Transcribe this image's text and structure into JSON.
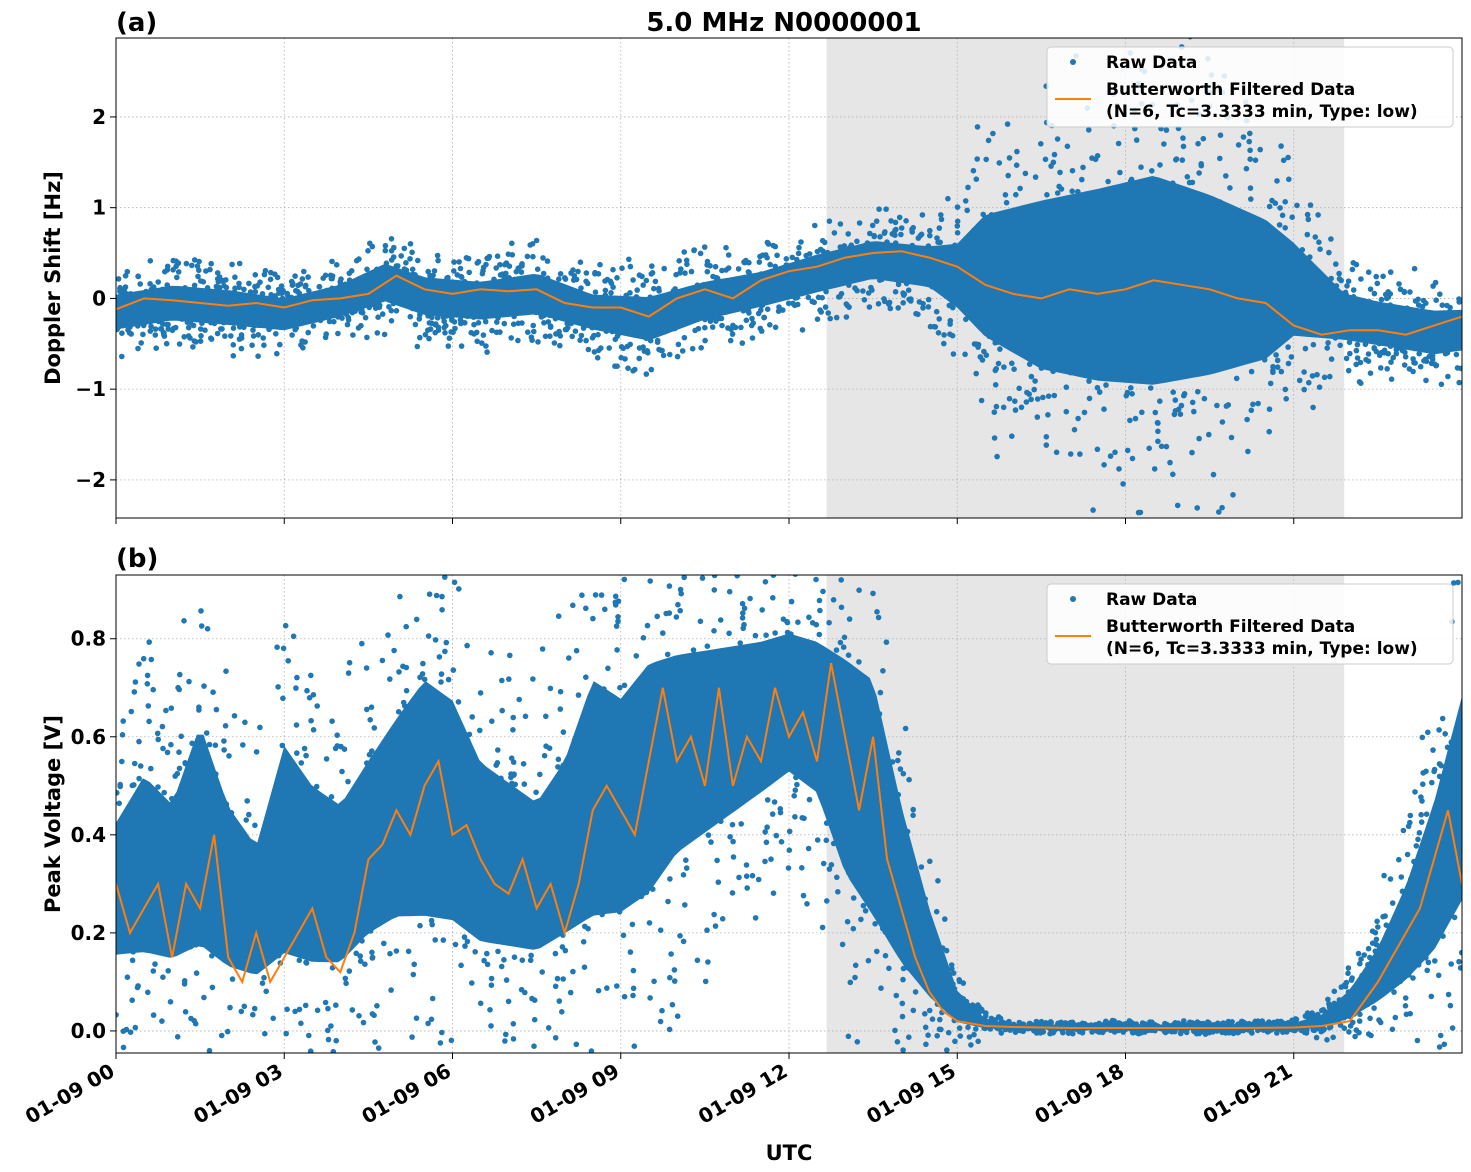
{
  "figure": {
    "title": "5.0 MHz N0000001",
    "xlabel": "UTC",
    "x_tick_labels": [
      "01-09 00",
      "01-09 03",
      "01-09 06",
      "01-09 09",
      "01-09 12",
      "01-09 15",
      "01-09 18",
      "01-09 21"
    ]
  },
  "legend": {
    "raw_label": "Raw Data",
    "filtered_label_line1": "Butterworth Filtered Data",
    "filtered_label_line2": "(N=6, Tc=3.3333 min, Type: low)"
  },
  "colors": {
    "raw": "#1f77b4",
    "filtered": "#ff7f0e",
    "shade": "#e6e6e6",
    "grid": "#b0b0b0"
  },
  "chart_data": [
    {
      "type": "scatter",
      "panel_label": "(a)",
      "ylabel": "Doppler Shift [Hz]",
      "xlim": [
        0,
        24
      ],
      "ylim": [
        -2.42,
        2.87
      ],
      "y_ticks": [
        -2,
        -1,
        0,
        1,
        2
      ],
      "y_tick_labels": [
        "−2",
        "−1",
        "0",
        "1",
        "2"
      ],
      "grid": true,
      "legend_position": "top-right",
      "shaded_region_hours": [
        12.67,
        21.9
      ],
      "series": [
        {
          "name": "Raw Data",
          "kind": "points",
          "envelope_x": [
            0,
            1,
            2,
            3,
            4,
            4.8,
            5.5,
            6.5,
            7.5,
            8.5,
            9.5,
            10.5,
            11.5,
            12.5,
            13.5,
            14.5,
            15.0,
            15.5,
            16.5,
            17.5,
            18.5,
            19.5,
            20.5,
            21.0,
            21.9,
            22.5,
            23.5,
            24
          ],
          "envelope_upper": [
            0.15,
            0.25,
            0.2,
            0.1,
            0.25,
            0.5,
            0.35,
            0.3,
            0.4,
            0.15,
            0.15,
            0.3,
            0.4,
            0.6,
            0.75,
            0.7,
            0.8,
            1.3,
            1.6,
            1.8,
            2.0,
            1.7,
            1.3,
            0.9,
            0.2,
            0.1,
            0.0,
            0.0
          ],
          "envelope_lower": [
            -0.45,
            -0.35,
            -0.4,
            -0.45,
            -0.3,
            -0.15,
            -0.3,
            -0.35,
            -0.3,
            -0.45,
            -0.6,
            -0.35,
            -0.2,
            -0.05,
            0.1,
            0.0,
            -0.3,
            -0.8,
            -1.3,
            -1.5,
            -1.6,
            -1.4,
            -1.1,
            -0.7,
            -0.6,
            -0.65,
            -0.75,
            -0.7
          ]
        },
        {
          "name": "Butterworth Filtered Data (N=6, Tc=3.3333 min, Type: low)",
          "kind": "line",
          "x": [
            0,
            0.5,
            1,
            1.5,
            2,
            2.5,
            3,
            3.5,
            4,
            4.5,
            5,
            5.5,
            6,
            6.5,
            7,
            7.5,
            8,
            8.5,
            9,
            9.5,
            10,
            10.5,
            11,
            11.5,
            12,
            12.5,
            13,
            13.5,
            14,
            14.5,
            15,
            15.5,
            16,
            16.5,
            17,
            17.5,
            18,
            18.5,
            19,
            19.5,
            20,
            20.5,
            21,
            21.5,
            22,
            22.5,
            23,
            23.5,
            24
          ],
          "y": [
            -0.12,
            0.0,
            -0.02,
            -0.05,
            -0.08,
            -0.05,
            -0.1,
            -0.02,
            0.0,
            0.05,
            0.25,
            0.1,
            0.05,
            0.1,
            0.08,
            0.1,
            -0.05,
            -0.1,
            -0.1,
            -0.2,
            0.0,
            0.1,
            0.0,
            0.2,
            0.3,
            0.35,
            0.45,
            0.5,
            0.52,
            0.45,
            0.35,
            0.15,
            0.05,
            0.0,
            0.1,
            0.05,
            0.1,
            0.2,
            0.15,
            0.1,
            0.0,
            -0.05,
            -0.3,
            -0.4,
            -0.35,
            -0.35,
            -0.4,
            -0.3,
            -0.2
          ]
        }
      ]
    },
    {
      "type": "scatter",
      "panel_label": "(b)",
      "ylabel": "Peak Voltage [V]",
      "xlim": [
        0,
        24
      ],
      "ylim": [
        -0.045,
        0.93
      ],
      "y_ticks": [
        0.0,
        0.2,
        0.4,
        0.6,
        0.8
      ],
      "y_tick_labels": [
        "0.0",
        "0.2",
        "0.4",
        "0.6",
        "0.8"
      ],
      "grid": true,
      "legend_position": "top-right",
      "shaded_region_hours": [
        12.67,
        21.9
      ],
      "series": [
        {
          "name": "Raw Data",
          "kind": "points",
          "envelope_x": [
            0,
            0.5,
            1,
            1.5,
            2,
            2.5,
            3,
            3.5,
            4,
            4.5,
            5,
            5.5,
            6,
            6.5,
            7,
            7.5,
            8,
            8.5,
            9,
            9.5,
            10,
            10.5,
            11,
            11.5,
            12,
            12.5,
            13,
            13.5,
            14,
            14.5,
            15,
            15.5,
            16,
            18,
            20,
            21,
            21.5,
            22,
            22.5,
            23,
            23.5,
            24
          ],
          "envelope_upper": [
            0.5,
            0.62,
            0.55,
            0.75,
            0.55,
            0.45,
            0.7,
            0.6,
            0.55,
            0.65,
            0.75,
            0.85,
            0.8,
            0.65,
            0.6,
            0.55,
            0.65,
            0.85,
            0.8,
            0.88,
            0.88,
            0.88,
            0.88,
            0.88,
            0.89,
            0.88,
            0.88,
            0.85,
            0.55,
            0.3,
            0.1,
            0.03,
            0.015,
            0.015,
            0.015,
            0.02,
            0.04,
            0.1,
            0.2,
            0.35,
            0.55,
            0.8
          ],
          "envelope_lower": [
            0.08,
            0.06,
            0.06,
            0.05,
            0.04,
            0.04,
            0.04,
            0.04,
            0.05,
            0.1,
            0.12,
            0.1,
            0.1,
            0.08,
            0.08,
            0.08,
            0.1,
            0.1,
            0.12,
            0.15,
            0.25,
            0.3,
            0.35,
            0.4,
            0.45,
            0.4,
            0.2,
            0.1,
            0.05,
            0.02,
            0.0,
            0.0,
            0.0,
            0.0,
            0.0,
            0.0,
            0.0,
            0.01,
            0.03,
            0.05,
            0.08,
            0.15
          ]
        },
        {
          "name": "Butterworth Filtered Data (N=6, Tc=3.3333 min, Type: low)",
          "kind": "line",
          "x": [
            0,
            0.25,
            0.5,
            0.75,
            1,
            1.25,
            1.5,
            1.75,
            2,
            2.25,
            2.5,
            2.75,
            3,
            3.25,
            3.5,
            3.75,
            4,
            4.25,
            4.5,
            4.75,
            5,
            5.25,
            5.5,
            5.75,
            6,
            6.25,
            6.5,
            6.75,
            7,
            7.25,
            7.5,
            7.75,
            8,
            8.25,
            8.5,
            8.75,
            9,
            9.25,
            9.5,
            9.75,
            10,
            10.25,
            10.5,
            10.75,
            11,
            11.25,
            11.5,
            11.75,
            12,
            12.25,
            12.5,
            12.75,
            13,
            13.25,
            13.5,
            13.75,
            14,
            14.25,
            14.5,
            14.75,
            15,
            15.5,
            16,
            17,
            18,
            19,
            20,
            21,
            21.5,
            22,
            22.25,
            22.5,
            22.75,
            23,
            23.25,
            23.5,
            23.75,
            24
          ],
          "y": [
            0.3,
            0.2,
            0.25,
            0.3,
            0.15,
            0.3,
            0.25,
            0.4,
            0.15,
            0.1,
            0.2,
            0.1,
            0.15,
            0.2,
            0.25,
            0.15,
            0.12,
            0.2,
            0.35,
            0.38,
            0.45,
            0.4,
            0.5,
            0.55,
            0.4,
            0.42,
            0.35,
            0.3,
            0.28,
            0.35,
            0.25,
            0.3,
            0.2,
            0.3,
            0.45,
            0.5,
            0.45,
            0.4,
            0.55,
            0.7,
            0.55,
            0.6,
            0.5,
            0.7,
            0.5,
            0.6,
            0.55,
            0.7,
            0.6,
            0.65,
            0.55,
            0.75,
            0.6,
            0.45,
            0.6,
            0.35,
            0.25,
            0.15,
            0.08,
            0.04,
            0.02,
            0.01,
            0.008,
            0.006,
            0.006,
            0.006,
            0.006,
            0.007,
            0.01,
            0.02,
            0.06,
            0.1,
            0.15,
            0.2,
            0.25,
            0.35,
            0.45,
            0.3
          ]
        }
      ]
    }
  ]
}
